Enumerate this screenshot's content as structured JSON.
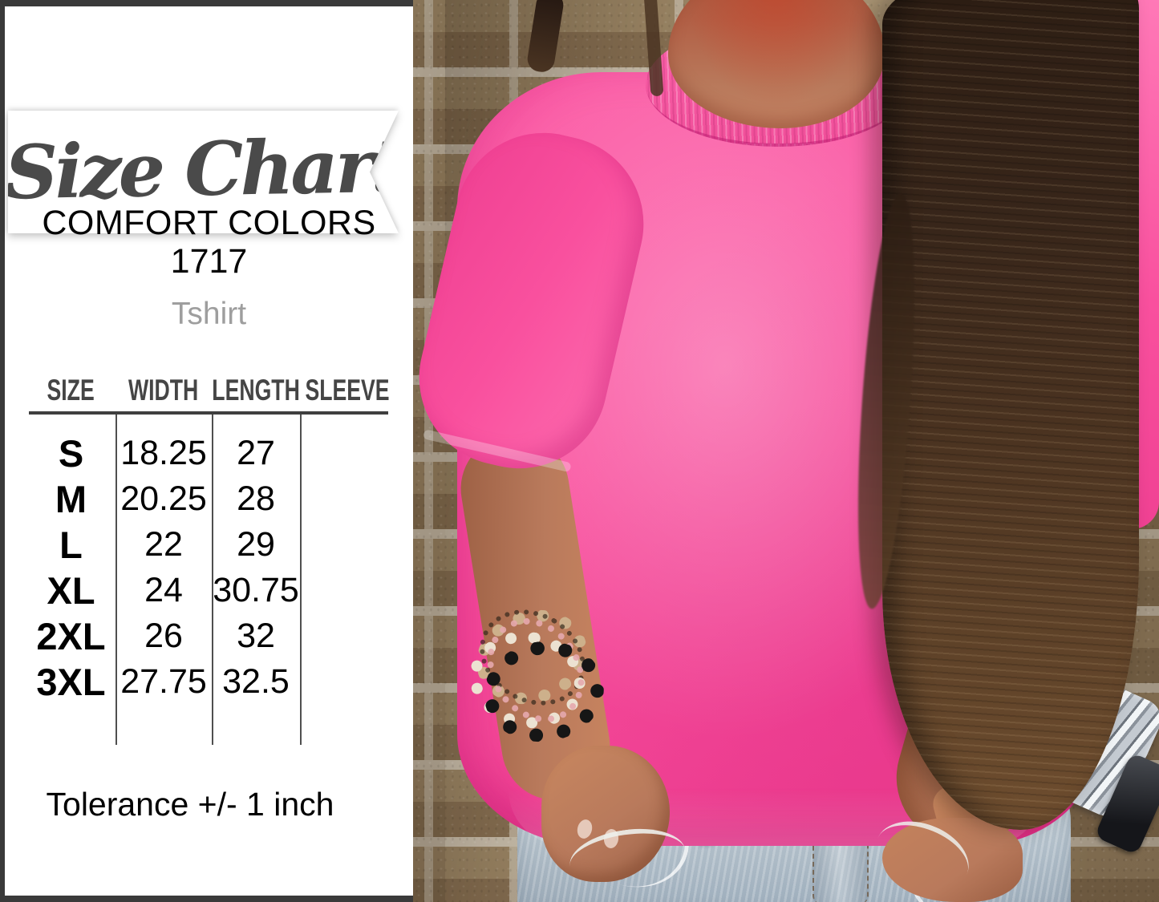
{
  "panel": {
    "banner": {
      "title": "Size Chart"
    },
    "brand": {
      "line1": "COMFORT COLORS",
      "line2": "1717"
    },
    "product_type": "Tshirt",
    "size_table": {
      "headers": [
        "SIZE",
        "WIDTH",
        "LENGTH",
        "SLEEVE"
      ],
      "rows": [
        {
          "size": "S",
          "width": "18.25",
          "length": "27",
          "sleeve": ""
        },
        {
          "size": "M",
          "width": "20.25",
          "length": "28",
          "sleeve": ""
        },
        {
          "size": "L",
          "width": "22",
          "length": "29",
          "sleeve": ""
        },
        {
          "size": "XL",
          "width": "24",
          "length": "30.75",
          "sleeve": ""
        },
        {
          "size": "2XL",
          "width": "26",
          "length": "32",
          "sleeve": ""
        },
        {
          "size": "3XL",
          "width": "27.75",
          "length": "32.5",
          "sleeve": ""
        }
      ]
    },
    "tolerance_note": "Tolerance +/- 1 inch"
  },
  "photo": {
    "description": "Model wearing a neon pink Comfort Colors 1717 t-shirt in front of a tan brick wall, hands tucked in light-wash jeans pockets, stacked beaded bracelets on the left wrist, silver link watch on the right wrist, long dark brown hair over the right shoulder",
    "colors": {
      "shirt_pink": "#f9509e",
      "shirt_pink_light": "#ff79b7",
      "shirt_pink_deep": "#ef4092",
      "brick_tan": "#a08a68",
      "brick_dark": "#8a7254",
      "mortar": "#d2c7b4",
      "hair_dark": "#2c1d13",
      "hair_light": "#6f4e2f",
      "skin": "#b97a5c",
      "skin_shadow": "#9c5f43",
      "jeans_light": "#c7d2da",
      "jeans_dark": "#9fafbd",
      "watch_silver": "#c4cad1",
      "bead_black": "#161616",
      "bead_pearl": "#ece2d2",
      "bead_tan": "#cdb08b"
    }
  },
  "frame": {
    "border_color": "#3a3a3a",
    "panel_bg": "#ffffff",
    "header_text": "#454545",
    "muted_text": "#9e9e9e"
  }
}
